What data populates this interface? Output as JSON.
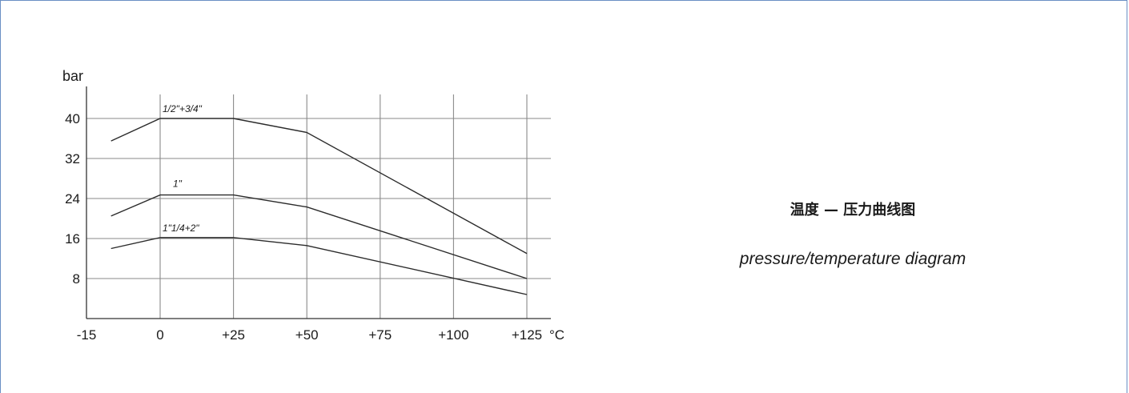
{
  "chart_data": {
    "type": "line",
    "ylabel": "bar",
    "xunit": "°C",
    "x": [
      -15,
      0,
      25,
      50,
      75,
      100,
      125
    ],
    "x_tick_labels": [
      "-15",
      "0",
      "+25",
      "+50",
      "+75",
      "+100",
      "+125"
    ],
    "y_ticks": [
      8,
      16,
      24,
      32,
      40
    ],
    "y_tick_labels": [
      "8",
      "16",
      "24",
      "32",
      "40"
    ],
    "xlim": [
      -15,
      125
    ],
    "ylim": [
      0,
      45
    ],
    "grid": true,
    "series": [
      {
        "name": "1/2\"+3/4\"",
        "points": [
          [
            -10,
            35.5
          ],
          [
            0,
            40
          ],
          [
            25,
            40
          ],
          [
            50,
            37.2
          ],
          [
            125,
            13
          ]
        ]
      },
      {
        "name": "1\"",
        "points": [
          [
            -10,
            20.5
          ],
          [
            0,
            24.7
          ],
          [
            25,
            24.7
          ],
          [
            50,
            22.3
          ],
          [
            125,
            8
          ]
        ]
      },
      {
        "name": "1\"1/4+2\"",
        "points": [
          [
            -10,
            14
          ],
          [
            0,
            16.2
          ],
          [
            25,
            16.2
          ],
          [
            50,
            14.6
          ],
          [
            125,
            4.8
          ]
        ]
      }
    ]
  },
  "caption": {
    "chinese": "温度 — 压力曲线图",
    "english": "pressure/temperature diagram"
  }
}
